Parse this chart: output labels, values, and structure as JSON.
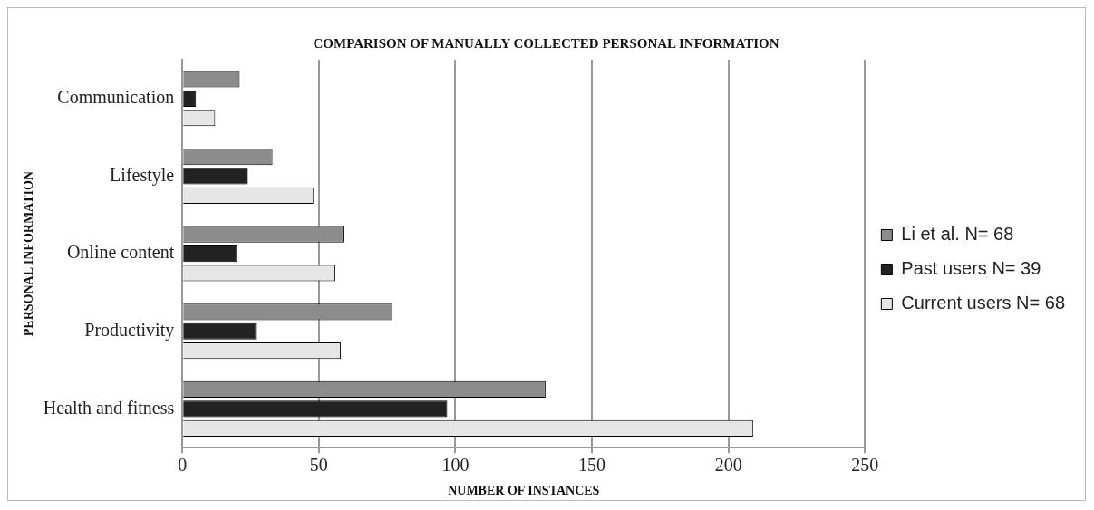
{
  "chart_data": {
    "type": "bar",
    "orientation": "horizontal",
    "title": "COMPARISON OF MANUALLY COLLECTED PERSONAL INFORMATION",
    "xlabel": "NUMBER OF INSTANCES",
    "ylabel": "PERSONAL INFORMATION",
    "categories": [
      "Communication",
      "Lifestyle",
      "Online content",
      "Productivity",
      "Health and fitness"
    ],
    "series": [
      {
        "name": "Li et al. N= 68",
        "color": "#8c8c8c",
        "values": [
          21,
          33,
          59,
          77,
          133
        ]
      },
      {
        "name": "Past users N= 39",
        "color": "#222222",
        "values": [
          5,
          24,
          20,
          27,
          97
        ]
      },
      {
        "name": "Current users N= 68",
        "color": "#e6e6e6",
        "values": [
          12,
          48,
          56,
          58,
          209
        ]
      }
    ],
    "xlim": [
      0,
      250
    ],
    "xticks": [
      0,
      50,
      100,
      150,
      200,
      250
    ],
    "grid": "x",
    "legend": "right"
  }
}
